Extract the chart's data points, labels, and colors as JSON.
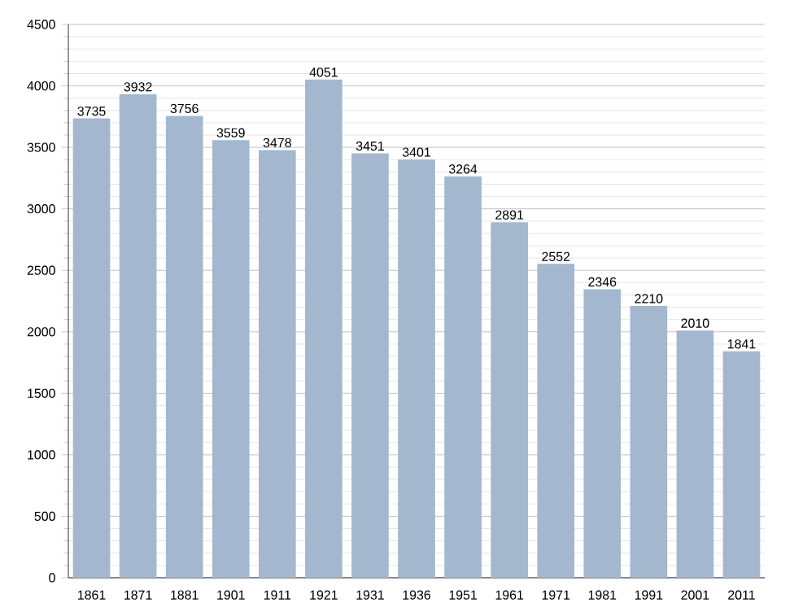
{
  "chart_data": {
    "type": "bar",
    "categories": [
      "1861",
      "1871",
      "1881",
      "1901",
      "1911",
      "1921",
      "1931",
      "1936",
      "1951",
      "1961",
      "1971",
      "1981",
      "1991",
      "2001",
      "2011"
    ],
    "values": [
      3735,
      3932,
      3756,
      3559,
      3478,
      4051,
      3451,
      3401,
      3264,
      2891,
      2552,
      2346,
      2210,
      2010,
      1841
    ],
    "color": "#a3b7cf",
    "ylim": [
      0,
      4500
    ],
    "yticks": [
      0,
      500,
      1000,
      1500,
      2000,
      2500,
      3000,
      3500,
      4000,
      4500
    ],
    "grid": "y",
    "data_labels": true
  }
}
